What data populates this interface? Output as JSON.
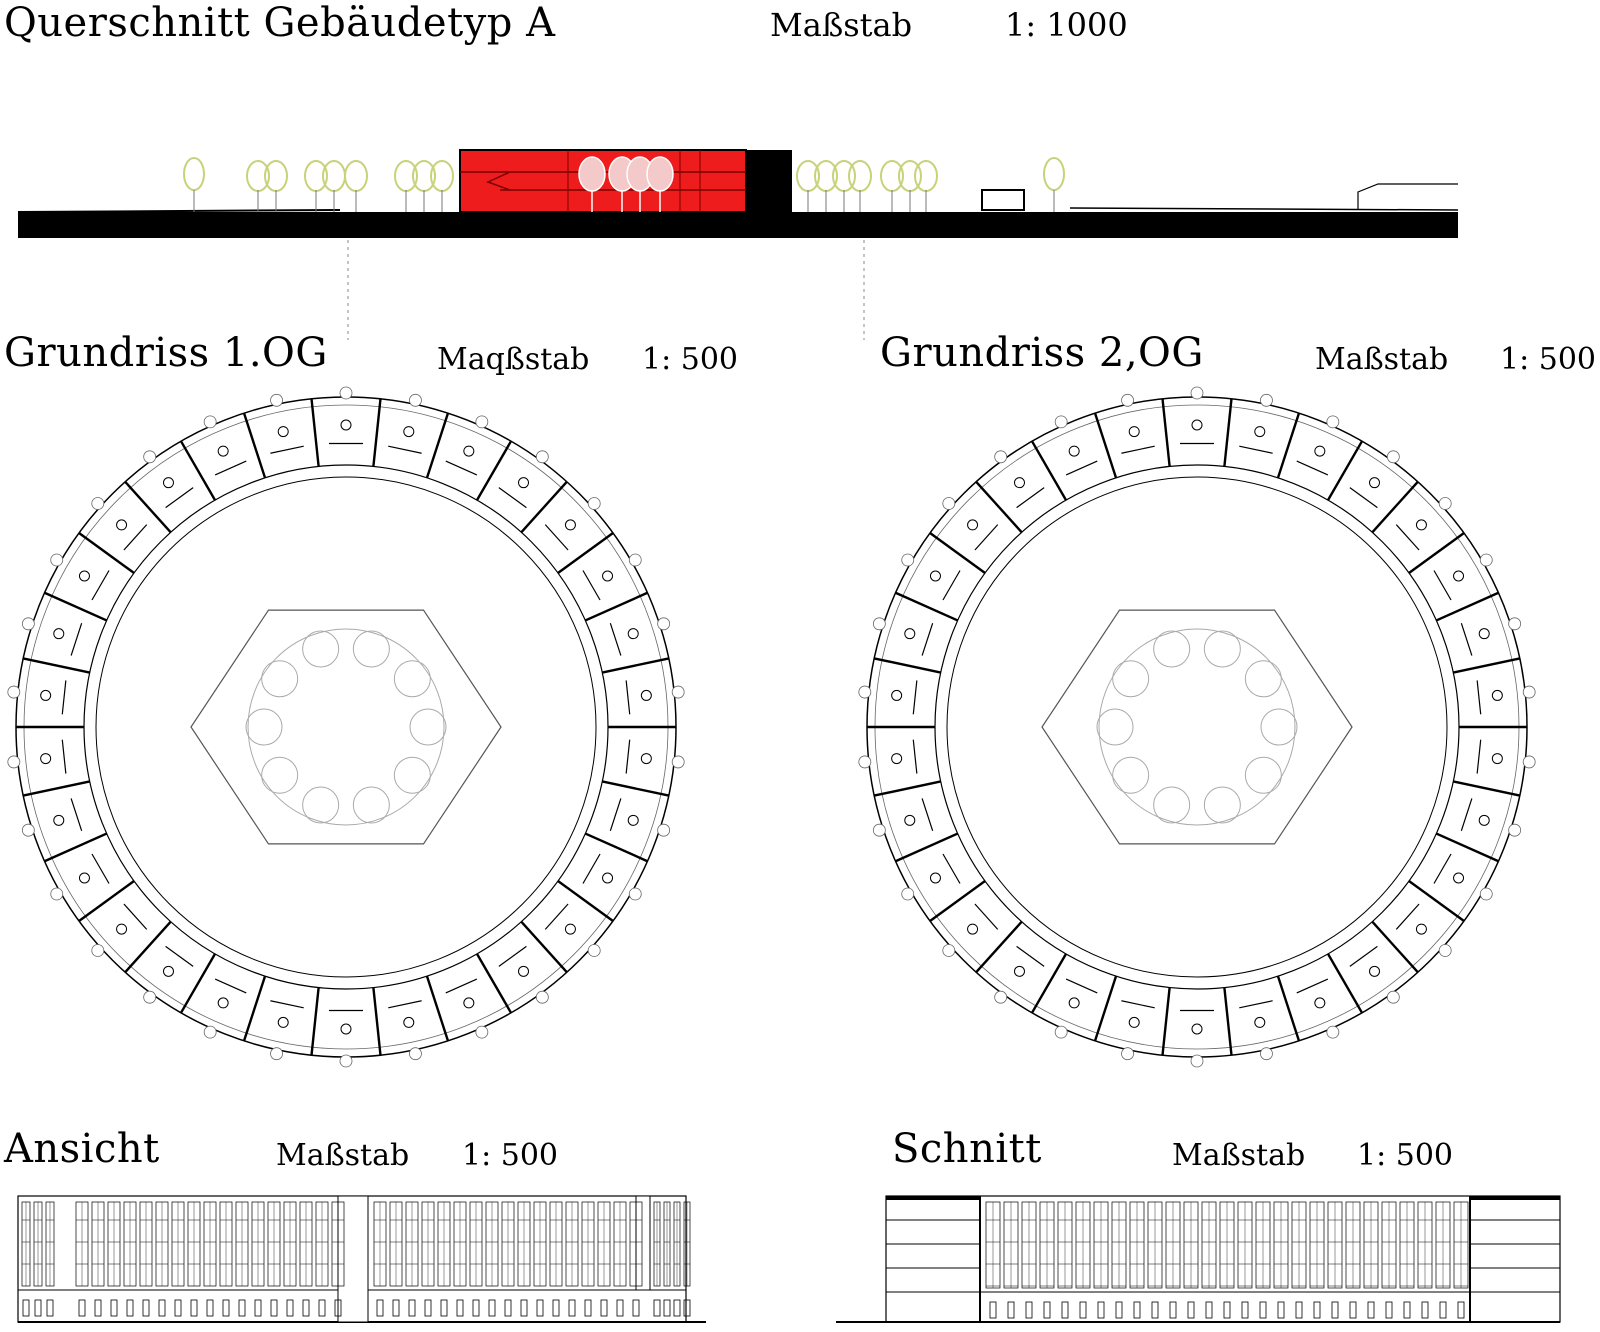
{
  "sections": {
    "querschnitt": {
      "title": "Querschnitt Gebäudetyp A",
      "scale_label": "Maßstab",
      "scale_value": "1: 1000"
    },
    "grundriss1": {
      "title": "Grundriss 1.OG",
      "scale_label": "Maqßstab",
      "scale_value": "1: 500"
    },
    "grundriss2": {
      "title": "Grundriss 2,OG",
      "scale_label": "Maßstab",
      "scale_value": "1: 500"
    },
    "ansicht": {
      "title": "Ansicht",
      "scale_label": "Maßstab",
      "scale_value": "1: 500"
    },
    "schnitt": {
      "title": "Schnitt",
      "scale_label": "Maßstab",
      "scale_value": "1: 500"
    }
  },
  "colors": {
    "building_section": "#ee1c1c",
    "trees": "#c8d27a",
    "linework": "#000000"
  },
  "plans": [
    {
      "name": "grundriss-1og",
      "units": 30
    },
    {
      "name": "grundriss-2og",
      "units": 30
    }
  ]
}
